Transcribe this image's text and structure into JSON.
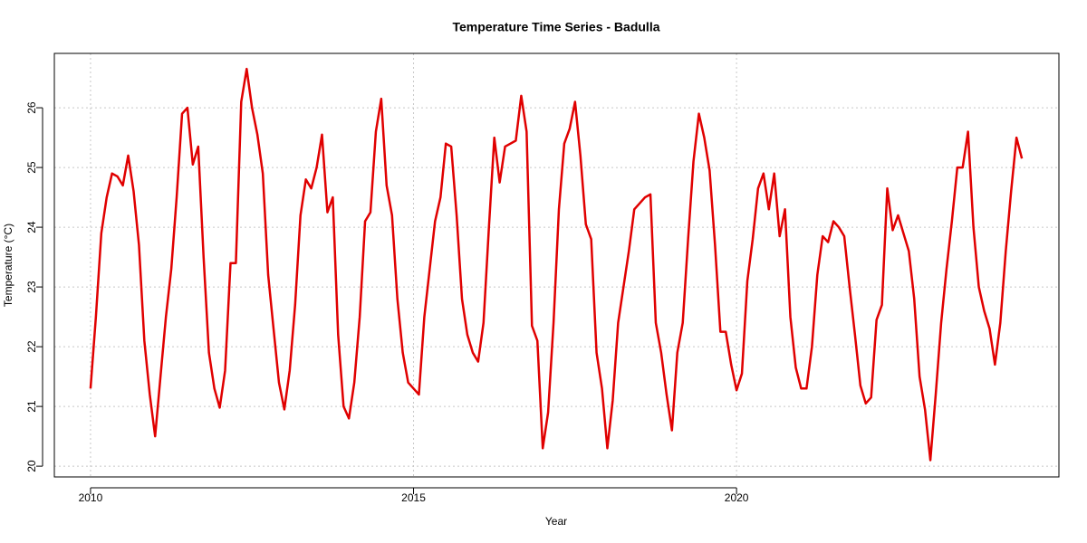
{
  "chart_data": {
    "type": "line",
    "title": "Temperature Time Series - Badulla",
    "x_label": "Year",
    "y_label": "Temperature (°C)",
    "x": [
      2010,
      2010.083,
      2010.167,
      2010.25,
      2010.333,
      2010.417,
      2010.5,
      2010.583,
      2010.667,
      2010.75,
      2010.833,
      2010.917,
      2011,
      2011.083,
      2011.167,
      2011.25,
      2011.333,
      2011.417,
      2011.5,
      2011.583,
      2011.667,
      2011.75,
      2011.833,
      2011.917,
      2012,
      2012.083,
      2012.167,
      2012.25,
      2012.333,
      2012.417,
      2012.5,
      2012.583,
      2012.667,
      2012.75,
      2012.833,
      2012.917,
      2013,
      2013.083,
      2013.167,
      2013.25,
      2013.333,
      2013.417,
      2013.5,
      2013.583,
      2013.667,
      2013.75,
      2013.833,
      2013.917,
      2014,
      2014.083,
      2014.167,
      2014.25,
      2014.333,
      2014.417,
      2014.5,
      2014.583,
      2014.667,
      2014.75,
      2014.833,
      2014.917,
      2015,
      2015.083,
      2015.167,
      2015.25,
      2015.333,
      2015.417,
      2015.5,
      2015.583,
      2015.667,
      2015.75,
      2015.833,
      2015.917,
      2016,
      2016.083,
      2016.167,
      2016.25,
      2016.333,
      2016.417,
      2016.5,
      2016.583,
      2016.667,
      2016.75,
      2016.833,
      2016.917,
      2017,
      2017.083,
      2017.167,
      2017.25,
      2017.333,
      2017.417,
      2017.5,
      2017.583,
      2017.667,
      2017.75,
      2017.833,
      2017.917,
      2018,
      2018.083,
      2018.167,
      2018.25,
      2018.333,
      2018.417,
      2018.5,
      2018.583,
      2018.667,
      2018.75,
      2018.833,
      2018.917,
      2019,
      2019.083,
      2019.167,
      2019.25,
      2019.333,
      2019.417,
      2019.5,
      2019.583,
      2019.667,
      2019.75,
      2019.833,
      2019.917,
      2020,
      2020.083,
      2020.167,
      2020.25,
      2020.333,
      2020.417,
      2020.5,
      2020.583,
      2020.667,
      2020.75,
      2020.833,
      2020.917,
      2021,
      2021.083,
      2021.167,
      2021.25,
      2021.333,
      2021.417,
      2021.5,
      2021.583,
      2021.667,
      2021.75,
      2021.833,
      2021.917,
      2022,
      2022.083,
      2022.167,
      2022.25,
      2022.333,
      2022.417,
      2022.5,
      2022.583,
      2022.667,
      2022.75,
      2022.833,
      2022.917,
      2023,
      2023.083,
      2023.167,
      2023.25,
      2023.333,
      2023.417,
      2023.5,
      2023.583,
      2023.667,
      2023.75,
      2023.833,
      2023.917,
      2024,
      2024.083,
      2024.167,
      2024.25,
      2024.333,
      2024.417
    ],
    "series": [
      {
        "color": "#e00000",
        "values": [
          21.3,
          22.5,
          23.9,
          24.5,
          24.9,
          24.85,
          24.7,
          25.2,
          24.6,
          23.7,
          22.1,
          21.2,
          20.5,
          21.5,
          22.5,
          23.3,
          24.5,
          25.9,
          26.0,
          25.05,
          25.35,
          23.5,
          21.9,
          21.3,
          20.98,
          21.6,
          23.4,
          23.4,
          26.1,
          26.65,
          26.0,
          25.55,
          24.9,
          23.2,
          22.3,
          21.4,
          20.95,
          21.6,
          22.7,
          24.2,
          24.8,
          24.65,
          25.0,
          25.55,
          24.25,
          24.5,
          22.2,
          21.0,
          20.8,
          21.4,
          22.5,
          24.1,
          24.25,
          25.6,
          26.15,
          24.7,
          24.2,
          22.8,
          21.9,
          21.4,
          21.3,
          21.2,
          22.5,
          23.3,
          24.1,
          24.5,
          25.4,
          25.35,
          24.2,
          22.8,
          22.2,
          21.9,
          21.75,
          22.4,
          24.0,
          25.5,
          24.75,
          25.35,
          25.4,
          25.45,
          26.2,
          25.6,
          22.35,
          22.1,
          20.3,
          20.9,
          22.4,
          24.3,
          25.4,
          25.65,
          26.1,
          25.2,
          24.05,
          23.8,
          21.9,
          21.3,
          20.3,
          21.1,
          22.4,
          23.0,
          23.6,
          24.3,
          24.4,
          24.5,
          24.55,
          22.4,
          21.9,
          21.2,
          20.6,
          21.9,
          22.4,
          23.8,
          25.1,
          25.9,
          25.5,
          24.95,
          23.7,
          22.25,
          22.25,
          21.7,
          21.27,
          21.55,
          23.1,
          23.8,
          24.65,
          24.9,
          24.3,
          24.9,
          23.85,
          24.3,
          22.5,
          21.65,
          21.3,
          21.3,
          22.0,
          23.2,
          23.85,
          23.75,
          24.1,
          24.0,
          23.85,
          23.0,
          22.2,
          21.35,
          21.05,
          21.15,
          22.45,
          22.7,
          24.65,
          23.95,
          24.2,
          23.9,
          23.6,
          22.8,
          21.5,
          20.95,
          20.1,
          21.2,
          22.4,
          23.3,
          24.1,
          25.0,
          25.0,
          25.6,
          24.0,
          23.0,
          22.6,
          22.3,
          21.7,
          22.4,
          23.6,
          24.6,
          25.5,
          25.15
        ]
      }
    ],
    "xlim": [
      2009.44,
      2024.99
    ],
    "ylim": [
      19.82,
      26.91
    ],
    "xticks": [
      2010,
      2015,
      2020
    ],
    "yticks": [
      20,
      21,
      22,
      23,
      24,
      25,
      26
    ],
    "grid": true
  }
}
